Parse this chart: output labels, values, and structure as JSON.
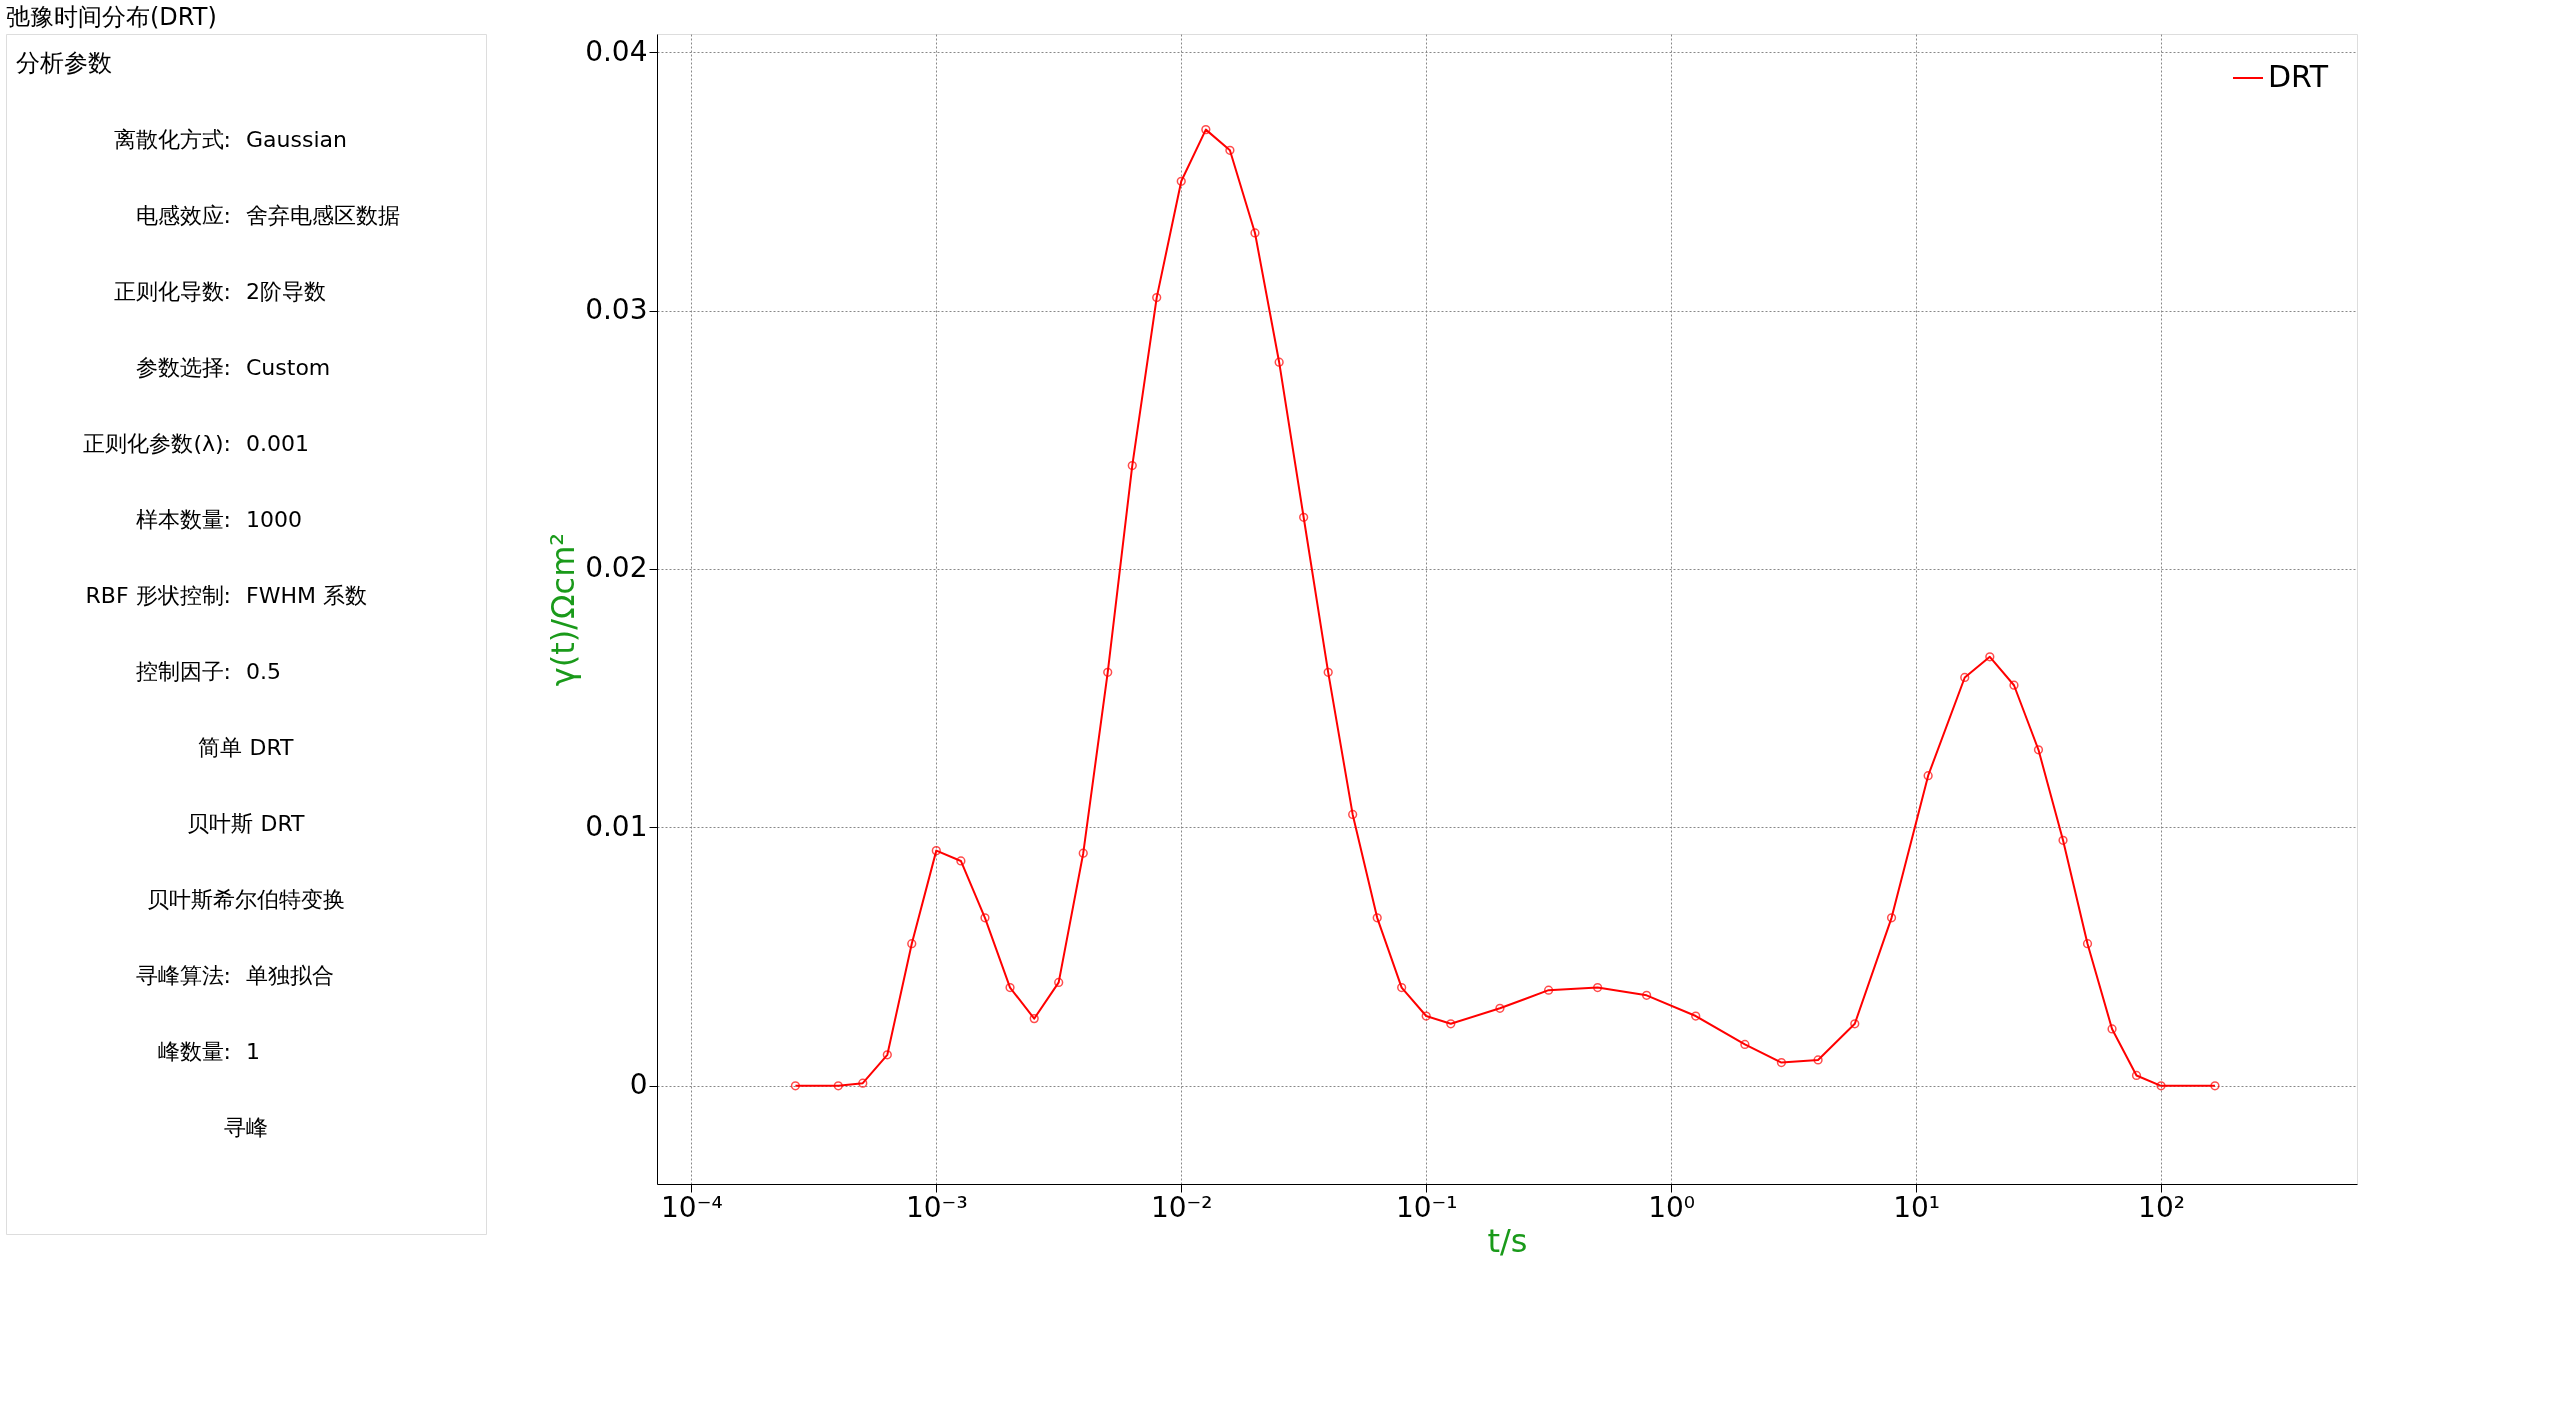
{
  "chart_data": [
    {
      "type": "other",
      "title": "弛豫时间分布(DRT)",
      "annotations": [
        "分析参数",
        "离散化方式:",
        "Gaussian",
        "电感效应:",
        "舍弃电感区数据",
        "正则化导数:",
        "2阶导数",
        "参数选择:",
        "Custom",
        "正则化参数(λ):",
        "0.001",
        "样本数量:",
        "1000",
        "RBF 形状控制:",
        "FWHM 系数",
        "控制因子:",
        "0.5",
        "简单 DRT",
        "贝叶斯 DRT",
        "贝叶斯希尔伯特变换",
        "寻峰算法:",
        "单独拟合",
        "峰数量:",
        "1",
        "寻峰"
      ]
    },
    {
      "type": "line",
      "xlabel": "t/s",
      "ylabel": "γ(t)/Ωcm²",
      "log": "x",
      "grid": true,
      "legend": "top right",
      "marker": "circle",
      "line_style": "solid",
      "xlim": [
        7.24e-05,
        631
      ],
      "ylim": [
        -0.0038,
        0.0407
      ],
      "xticks": [
        {
          "value": 0.0001,
          "label": "10⁻⁴"
        },
        {
          "value": 0.001,
          "label": "10⁻³"
        },
        {
          "value": 0.01,
          "label": "10⁻²"
        },
        {
          "value": 0.1,
          "label": "10⁻¹"
        },
        {
          "value": 1,
          "label": "10⁰"
        },
        {
          "value": 10,
          "label": "10¹"
        },
        {
          "value": 100,
          "label": "10²"
        }
      ],
      "yticks": [
        0,
        0.01,
        0.02,
        0.03,
        0.04
      ],
      "x": [
        0.000266,
        0.000398,
        0.000501,
        0.000631,
        0.000794,
        0.001,
        0.00126,
        0.00158,
        0.002,
        0.00251,
        0.00316,
        0.00398,
        0.00501,
        0.00631,
        0.00794,
        0.01,
        0.0126,
        0.0158,
        0.02,
        0.0251,
        0.0316,
        0.0398,
        0.0501,
        0.0631,
        0.0794,
        0.1,
        0.126,
        0.2,
        0.316,
        0.501,
        0.794,
        1.26,
        2.0,
        2.82,
        3.98,
        5.62,
        7.94,
        11.2,
        15.8,
        20.0,
        25.1,
        31.6,
        39.8,
        50.1,
        63.1,
        79.4,
        100,
        166
      ],
      "series": [
        {
          "name": "DRT",
          "color": "#ff0000",
          "values": [
            0,
            0,
            0.0001,
            0.0012,
            0.0055,
            0.0091,
            0.0087,
            0.0065,
            0.0038,
            0.0026,
            0.004,
            0.009,
            0.016,
            0.024,
            0.0305,
            0.035,
            0.037,
            0.0362,
            0.033,
            0.028,
            0.022,
            0.016,
            0.0105,
            0.0065,
            0.0038,
            0.0027,
            0.0024,
            0.003,
            0.0037,
            0.0038,
            0.0035,
            0.0027,
            0.0016,
            0.0009,
            0.001,
            0.0024,
            0.0065,
            0.012,
            0.0158,
            0.0166,
            0.0155,
            0.013,
            0.0095,
            0.0055,
            0.0022,
            0.0004,
            0,
            0
          ]
        }
      ]
    }
  ]
}
